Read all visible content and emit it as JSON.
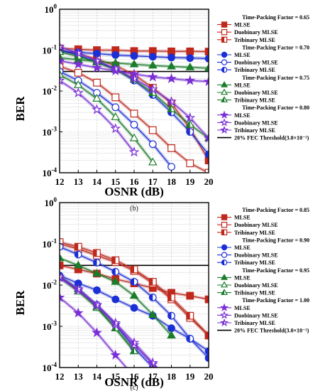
{
  "chart_data": [
    {
      "type": "line",
      "caption": "(b)",
      "xlabel": "OSNR (dB)",
      "ylabel": "BER",
      "xlim": [
        12,
        20
      ],
      "ylim": [
        0.0001,
        1
      ],
      "yscale": "log",
      "grid": true,
      "legend_position": "right",
      "x_ticks": [
        "12",
        "13",
        "14",
        "15",
        "16",
        "17",
        "18",
        "19",
        "20"
      ],
      "y_ticks": [
        {
          "base": "10",
          "exp": "0"
        },
        {
          "base": "10",
          "exp": "-1"
        },
        {
          "base": "10",
          "exp": "-2"
        },
        {
          "base": "10",
          "exp": "-3"
        },
        {
          "base": "10",
          "exp": "-4"
        }
      ],
      "threshold": {
        "label": "20% FEC Threshold(3.0×10⁻²)",
        "value": 0.03
      },
      "groups": [
        {
          "title": "Time-Packing Factor = 0.65",
          "color": "#c0281c",
          "marker": "square",
          "series": [
            {
              "name": "MLSE",
              "fill": "full",
              "x": [
                12,
                13,
                14,
                15,
                16,
                17,
                18,
                19,
                20
              ],
              "y": [
                0.11,
                0.105,
                0.1,
                0.1,
                0.095,
                0.095,
                0.093,
                0.093,
                0.092
              ]
            },
            {
              "name": "Duobinary MLSE",
              "fill": "none",
              "x": [
                12,
                13,
                14,
                15,
                16,
                17,
                18,
                19,
                20
              ],
              "y": [
                0.04,
                0.028,
                0.016,
                0.007,
                0.0028,
                0.0011,
                0.0004,
                0.00017,
                0.0001
              ]
            },
            {
              "name": "Tribinary MLSE",
              "fill": "half",
              "x": [
                12,
                13,
                14,
                15,
                16,
                17,
                18,
                19,
                20
              ],
              "y": [
                0.1,
                0.08,
                0.06,
                0.042,
                0.025,
                0.012,
                0.005,
                0.0012,
                0.0002
              ]
            }
          ]
        },
        {
          "title": "Time-Packing Factor = 0.70",
          "color": "#1b2fd6",
          "marker": "circle",
          "series": [
            {
              "name": "MLSE",
              "fill": "full",
              "x": [
                12,
                13,
                14,
                15,
                16,
                17,
                18,
                19,
                20
              ],
              "y": [
                0.095,
                0.088,
                0.082,
                0.076,
                0.072,
                0.069,
                0.066,
                0.064,
                0.062
              ]
            },
            {
              "name": "Duobinary MLSE",
              "fill": "none",
              "x": [
                12,
                13,
                14,
                15,
                16,
                17,
                18
              ],
              "y": [
                0.03,
                0.018,
                0.009,
                0.004,
                0.0015,
                0.0005,
                0.00014
              ]
            },
            {
              "name": "Tribinary MLSE",
              "fill": "half",
              "x": [
                12,
                13,
                14,
                15,
                16,
                17,
                18,
                19,
                20
              ],
              "y": [
                0.1,
                0.075,
                0.052,
                0.034,
                0.018,
                0.008,
                0.003,
                0.001,
                0.00028
              ]
            }
          ]
        },
        {
          "title": "Time-Packing Factor = 0.75",
          "color": "#1a7d2a",
          "marker": "triangle",
          "series": [
            {
              "name": "MLSE",
              "fill": "full",
              "x": [
                12,
                13,
                14,
                15,
                16,
                17,
                18,
                19,
                20
              ],
              "y": [
                0.065,
                0.058,
                0.053,
                0.048,
                0.045,
                0.042,
                0.04,
                0.038,
                0.036
              ]
            },
            {
              "name": "Duobinary MLSE",
              "fill": "none",
              "x": [
                12,
                13,
                14,
                15,
                16,
                17
              ],
              "y": [
                0.025,
                0.014,
                0.0065,
                0.0023,
                0.0007,
                0.00018
              ]
            },
            {
              "name": "Tribinary MLSE",
              "fill": "half",
              "x": [
                12,
                13,
                14,
                15,
                16,
                17,
                18,
                19,
                20
              ],
              "y": [
                0.09,
                0.07,
                0.05,
                0.033,
                0.019,
                0.009,
                0.0036,
                0.0015,
                0.0007
              ]
            }
          ]
        },
        {
          "title": "Time-Packing Factor = 0.80",
          "color": "#7a2ed6",
          "marker": "star",
          "series": [
            {
              "name": "MLSE",
              "fill": "full",
              "x": [
                12,
                13,
                14,
                15,
                16,
                17,
                18,
                19,
                20
              ],
              "y": [
                0.055,
                0.045,
                0.037,
                0.031,
                0.026,
                0.022,
                0.02,
                0.018,
                0.017
              ]
            },
            {
              "name": "Duobinary MLSE",
              "fill": "none",
              "x": [
                12,
                13,
                14,
                15,
                16
              ],
              "y": [
                0.018,
                0.009,
                0.0035,
                0.0012,
                0.00032
              ]
            },
            {
              "name": "Tribinary MLSE",
              "fill": "half",
              "x": [
                12,
                13,
                14,
                15,
                16,
                17,
                18,
                19,
                20
              ],
              "y": [
                0.12,
                0.085,
                0.055,
                0.035,
                0.02,
                0.011,
                0.0055,
                0.0022,
                0.0007
              ]
            }
          ]
        }
      ]
    },
    {
      "type": "line",
      "caption": "(c)",
      "xlabel": "OSNR (dB)",
      "ylabel": "BER",
      "xlim": [
        12,
        20
      ],
      "ylim": [
        0.0001,
        1
      ],
      "yscale": "log",
      "grid": true,
      "legend_position": "right",
      "x_ticks": [
        "12",
        "13",
        "14",
        "15",
        "16",
        "17",
        "18",
        "19",
        "20"
      ],
      "y_ticks": [
        {
          "base": "10",
          "exp": "0"
        },
        {
          "base": "10",
          "exp": "-1"
        },
        {
          "base": "10",
          "exp": "-2"
        },
        {
          "base": "10",
          "exp": "-3"
        },
        {
          "base": "10",
          "exp": "-4"
        }
      ],
      "threshold": {
        "label": "20% FEC Threshold(3.0×10⁻²)",
        "value": 0.03
      },
      "groups": [
        {
          "title": "Time-Packing Factor = 0.85",
          "color": "#c0281c",
          "marker": "square",
          "series": [
            {
              "name": "MLSE",
              "fill": "full",
              "x": [
                12,
                13,
                14,
                15,
                16,
                17,
                18,
                19,
                20
              ],
              "y": [
                0.03,
                0.024,
                0.019,
                0.014,
                0.011,
                0.0085,
                0.0065,
                0.0055,
                0.0045
              ]
            },
            {
              "name": "Duobinary MLSE",
              "fill": "none",
              "x": [
                12,
                13,
                14,
                15,
                16,
                17,
                18,
                19,
                20
              ],
              "y": [
                0.1,
                0.075,
                0.052,
                0.036,
                0.022,
                0.011,
                0.0045,
                0.0016,
                0.0006
              ]
            },
            {
              "name": "Tribinary MLSE",
              "fill": "half",
              "x": [
                12,
                13,
                14,
                15,
                16,
                17,
                18,
                19,
                20
              ],
              "y": [
                0.11,
                0.085,
                0.06,
                0.04,
                0.024,
                0.012,
                0.005,
                0.0018,
                0.0006
              ]
            }
          ]
        },
        {
          "title": "Time-Packing Factor = 0.90",
          "color": "#1b2fd6",
          "marker": "circle",
          "series": [
            {
              "name": "MLSE",
              "fill": "full",
              "x": [
                12,
                13,
                14,
                15,
                16,
                17,
                18,
                19,
                20
              ],
              "y": [
                0.017,
                0.011,
                0.0075,
                0.0045,
                0.0028,
                0.0018,
                0.0009,
                0.0005,
                0.00025
              ]
            },
            {
              "name": "Duobinary MLSE",
              "fill": "none",
              "x": [
                12,
                13,
                14,
                15,
                16,
                17
              ],
              "y": [
                0.016,
                0.008,
                0.0033,
                0.0011,
                0.0003,
                0.0001
              ]
            },
            {
              "name": "Tribinary MLSE",
              "fill": "half",
              "x": [
                12,
                13,
                14,
                15,
                16,
                17,
                18,
                19,
                20
              ],
              "y": [
                0.085,
                0.055,
                0.035,
                0.021,
                0.012,
                0.005,
                0.0018,
                0.0005,
                0.00017
              ]
            }
          ]
        },
        {
          "title": "Time-Packing Factor = 0.95",
          "color": "#1a7d2a",
          "marker": "triangle",
          "series": [
            {
              "name": "MLSE",
              "fill": "full",
              "x": [
                12,
                13,
                14,
                15,
                16,
                17,
                18
              ],
              "y": [
                0.045,
                0.03,
                0.019,
                0.012,
                0.0055,
                0.0019,
                0.0006
              ]
            },
            {
              "name": "Duobinary MLSE",
              "fill": "none",
              "x": [
                12,
                13,
                14,
                15,
                16
              ],
              "y": [
                0.015,
                0.007,
                0.0028,
                0.0009,
                0.00025
              ]
            },
            {
              "name": "Tribinary MLSE",
              "fill": "half",
              "x": [
                12,
                13,
                14,
                15,
                16
              ],
              "y": [
                0.016,
                0.008,
                0.003,
                0.0009,
                0.00025
              ]
            }
          ]
        },
        {
          "title": "Time-Packing Factor = 1.00",
          "color": "#7a2ed6",
          "marker": "star",
          "series": [
            {
              "name": "MLSE",
              "fill": "full",
              "x": [
                12,
                13,
                14,
                15,
                16
              ],
              "y": [
                0.005,
                0.0021,
                0.0007,
                0.0002,
                6e-05
              ]
            },
            {
              "name": "Duobinary MLSE",
              "fill": "none",
              "x": [
                12,
                13,
                14,
                15,
                16,
                17,
                18
              ],
              "y": [
                0.015,
                0.0075,
                0.0032,
                0.0011,
                0.00035,
                0.00012,
                4e-05
              ]
            },
            {
              "name": "Tribinary MLSE",
              "fill": "half",
              "x": [
                12,
                13,
                14,
                15,
                16,
                17,
                18
              ],
              "y": [
                0.016,
                0.008,
                0.0033,
                0.0012,
                0.0004,
                0.00013,
                4e-05
              ]
            }
          ]
        }
      ]
    }
  ]
}
